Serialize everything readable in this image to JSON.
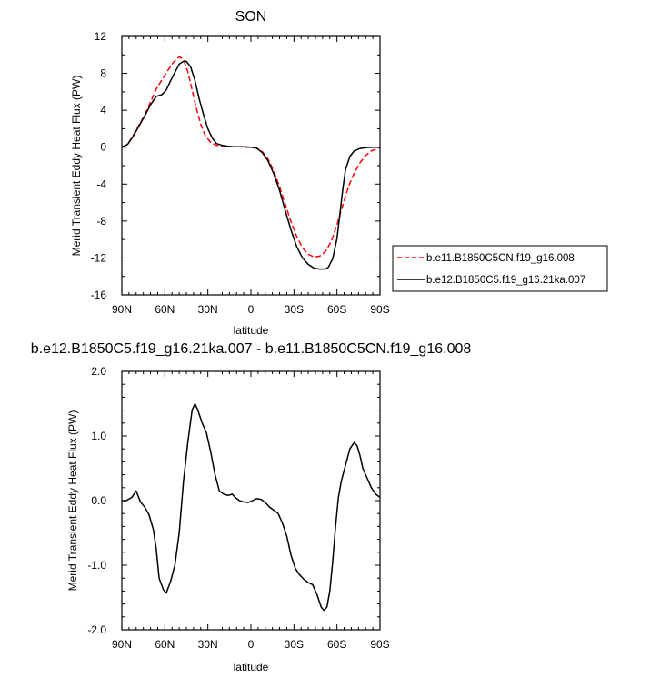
{
  "chart_data": [
    {
      "type": "line",
      "title": "SON",
      "xlabel": "latitude",
      "ylabel": "Merid Transient Eddy Heat Flux (PW)",
      "xlim": [
        90,
        -90
      ],
      "ylim": [
        -16,
        12
      ],
      "xticks": [
        90,
        60,
        30,
        0,
        -30,
        -60,
        -90
      ],
      "xtick_labels": [
        "90N",
        "60N",
        "30N",
        "0",
        "30S",
        "60S",
        "90S"
      ],
      "yticks": [
        12,
        8,
        4,
        0,
        -4,
        -8,
        -12,
        -16
      ],
      "ytick_labels": [
        "12",
        "8",
        "4",
        "0",
        "-4",
        "-8",
        "-12",
        "-16"
      ],
      "legend_position": "right",
      "series": [
        {
          "name": "b.e11.B1850C5CN.f19_g16.008",
          "color": "#ff0000",
          "style": "dashed",
          "x": [
            90,
            86,
            82,
            78,
            74,
            70,
            66,
            62,
            58,
            54,
            50,
            47,
            44,
            41,
            38,
            35,
            32,
            28,
            24,
            20,
            16,
            12,
            8,
            4,
            0,
            -4,
            -8,
            -12,
            -16,
            -20,
            -24,
            -28,
            -32,
            -36,
            -40,
            -44,
            -48,
            -52,
            -56,
            -60,
            -64,
            -68,
            -72,
            -76,
            -80,
            -84,
            -90
          ],
          "y": [
            0,
            0.3,
            1.3,
            2.4,
            3.5,
            4.9,
            6.3,
            7.3,
            8.3,
            9.2,
            9.8,
            9.5,
            8.2,
            6.2,
            4.2,
            2.5,
            1.3,
            0.5,
            0.2,
            0.1,
            0.05,
            0.05,
            0.05,
            0,
            0,
            -0.1,
            -0.5,
            -1.3,
            -2.6,
            -4.3,
            -6.2,
            -8.1,
            -9.7,
            -10.9,
            -11.6,
            -11.9,
            -11.8,
            -11.3,
            -10.2,
            -8.4,
            -6.3,
            -4.3,
            -2.8,
            -1.7,
            -0.9,
            -0.4,
            0
          ]
        },
        {
          "name": "b.e12.B1850C5.f19_g16.21ka.007",
          "color": "#000000",
          "style": "solid",
          "x": [
            90,
            86,
            82,
            78,
            74,
            70,
            66,
            62,
            59,
            56,
            53,
            50,
            47,
            45,
            42,
            39,
            36,
            33,
            30,
            27,
            24,
            20,
            16,
            12,
            8,
            4,
            0,
            -4,
            -8,
            -12,
            -16,
            -20,
            -24,
            -28,
            -32,
            -36,
            -40,
            -44,
            -48,
            -52,
            -54,
            -57,
            -60,
            -62,
            -64,
            -66,
            -69,
            -72,
            -76,
            -80,
            -84,
            -90
          ],
          "y": [
            0,
            0.3,
            1.2,
            2.3,
            3.4,
            4.6,
            5.5,
            5.7,
            6.2,
            7.2,
            8.1,
            9.0,
            9.3,
            9.3,
            8.7,
            7.2,
            5.2,
            3.5,
            2.0,
            1.0,
            0.4,
            0.2,
            0.1,
            0.05,
            0.05,
            0.05,
            0,
            -0.1,
            -0.6,
            -1.5,
            -2.9,
            -4.7,
            -6.9,
            -9.0,
            -10.8,
            -12.0,
            -12.7,
            -13.1,
            -13.2,
            -13.2,
            -13.0,
            -12.1,
            -9.9,
            -7.3,
            -4.6,
            -2.4,
            -1.0,
            -0.4,
            -0.15,
            -0.05,
            0,
            0
          ]
        }
      ]
    },
    {
      "type": "line",
      "title": "b.e12.B1850C5.f19_g16.21ka.007 - b.e11.B1850C5CN.f19_g16.008",
      "xlabel": "latitude",
      "ylabel": "Merid Transient Eddy Heat Flux (PW)",
      "xlim": [
        90,
        -90
      ],
      "ylim": [
        -2.0,
        2.0
      ],
      "xticks": [
        90,
        60,
        30,
        0,
        -30,
        -60,
        -90
      ],
      "xtick_labels": [
        "90N",
        "60N",
        "30N",
        "0",
        "30S",
        "60S",
        "90S"
      ],
      "yticks": [
        2.0,
        1.0,
        0.0,
        -1.0,
        -2.0
      ],
      "ytick_labels": [
        "2.0",
        "1.0",
        "0.0",
        "-1.0",
        "-2.0"
      ],
      "series": [
        {
          "color": "#000000",
          "style": "solid",
          "x": [
            90,
            87,
            83,
            80,
            77,
            74,
            71,
            68,
            66,
            64,
            61,
            59,
            56,
            53,
            50,
            47,
            44,
            41,
            39,
            37,
            34,
            31,
            28,
            25,
            22,
            19,
            16,
            13,
            11,
            8,
            5,
            2,
            -1,
            -4,
            -7,
            -10,
            -13,
            -16,
            -19,
            -22,
            -25,
            -28,
            -31,
            -34,
            -37,
            -40,
            -43,
            -46,
            -49,
            -51,
            -53,
            -55,
            -57,
            -59,
            -61,
            -63,
            -66,
            -69,
            -72,
            -74,
            -76,
            -78,
            -81,
            -84,
            -87,
            -90
          ],
          "y": [
            0,
            0,
            0.05,
            0.15,
            -0.02,
            -0.1,
            -0.22,
            -0.45,
            -0.75,
            -1.2,
            -1.38,
            -1.43,
            -1.25,
            -1.0,
            -0.5,
            0.3,
            0.9,
            1.4,
            1.5,
            1.4,
            1.2,
            1.05,
            0.75,
            0.4,
            0.15,
            0.1,
            0.08,
            0.1,
            0.05,
            0.0,
            -0.02,
            -0.03,
            0.0,
            0.03,
            0.02,
            -0.03,
            -0.1,
            -0.15,
            -0.2,
            -0.35,
            -0.55,
            -0.85,
            -1.05,
            -1.15,
            -1.22,
            -1.27,
            -1.3,
            -1.45,
            -1.65,
            -1.7,
            -1.65,
            -1.4,
            -0.95,
            -0.4,
            0.05,
            0.3,
            0.55,
            0.8,
            0.9,
            0.85,
            0.7,
            0.5,
            0.35,
            0.2,
            0.1,
            0.05
          ]
        }
      ]
    }
  ]
}
